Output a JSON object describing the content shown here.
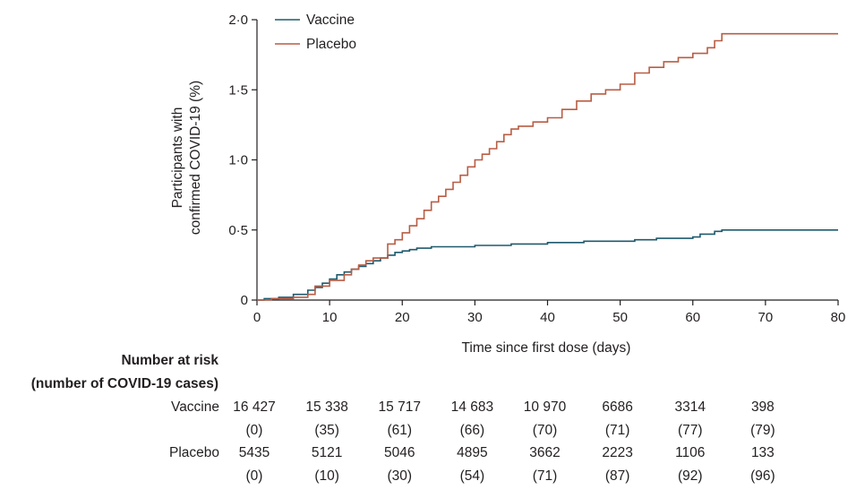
{
  "chart_data": {
    "type": "line",
    "line_style": "step",
    "xlabel": "Time since first dose (days)",
    "ylabel_lines": [
      "Participants with",
      "confirmed COVID-19 (%)"
    ],
    "xlim": [
      0,
      80
    ],
    "ylim": [
      0,
      2.0
    ],
    "x_ticks": [
      "0",
      "10",
      "20",
      "30",
      "40",
      "50",
      "60",
      "70",
      "80"
    ],
    "y_ticks": [
      "0",
      "0·5",
      "1·0",
      "1·5",
      "2·0"
    ],
    "grid": false,
    "legend_position": "top-left",
    "colors": {
      "Vaccine": "#1f5a6e",
      "Placebo": "#b85d44"
    },
    "series": [
      {
        "name": "Vaccine",
        "x": [
          0,
          1,
          3,
          5,
          7,
          8,
          9,
          10,
          11,
          12,
          13,
          14,
          15,
          16,
          17,
          18,
          19,
          20,
          21,
          22,
          24,
          27,
          30,
          35,
          40,
          45,
          50,
          52,
          55,
          58,
          60,
          61,
          63,
          64,
          70,
          80
        ],
        "y": [
          0,
          0.01,
          0.02,
          0.04,
          0.07,
          0.09,
          0.12,
          0.15,
          0.18,
          0.2,
          0.22,
          0.24,
          0.26,
          0.28,
          0.3,
          0.32,
          0.34,
          0.35,
          0.36,
          0.37,
          0.38,
          0.38,
          0.39,
          0.4,
          0.41,
          0.42,
          0.42,
          0.43,
          0.44,
          0.44,
          0.45,
          0.47,
          0.49,
          0.5,
          0.5,
          0.5
        ]
      },
      {
        "name": "Placebo",
        "x": [
          0,
          2,
          5,
          7,
          8,
          10,
          12,
          13,
          14,
          15,
          16,
          17,
          18,
          19,
          20,
          21,
          22,
          23,
          24,
          25,
          26,
          27,
          28,
          29,
          30,
          31,
          32,
          33,
          34,
          35,
          36,
          38,
          40,
          42,
          44,
          46,
          48,
          50,
          52,
          54,
          56,
          58,
          60,
          62,
          63,
          64,
          70,
          80
        ],
        "y": [
          0,
          0.01,
          0.02,
          0.04,
          0.1,
          0.14,
          0.18,
          0.22,
          0.25,
          0.28,
          0.3,
          0.3,
          0.4,
          0.43,
          0.48,
          0.53,
          0.58,
          0.64,
          0.7,
          0.74,
          0.79,
          0.84,
          0.89,
          0.95,
          1.0,
          1.04,
          1.08,
          1.13,
          1.18,
          1.22,
          1.24,
          1.27,
          1.3,
          1.36,
          1.42,
          1.47,
          1.5,
          1.54,
          1.62,
          1.66,
          1.7,
          1.73,
          1.76,
          1.8,
          1.85,
          1.9,
          1.9,
          1.9
        ]
      }
    ]
  },
  "risk_table": {
    "title_line1": "Number at risk",
    "title_line2": "(number of COVID-19 cases)",
    "rows": [
      {
        "label": "Vaccine",
        "counts": [
          "16 427",
          "15 338",
          "15 717",
          "14 683",
          "10 970",
          "6686",
          "3314",
          "398"
        ],
        "cases": [
          "(0)",
          "(35)",
          "(61)",
          "(66)",
          "(70)",
          "(71)",
          "(77)",
          "(79)"
        ]
      },
      {
        "label": "Placebo",
        "counts": [
          "5435",
          "5121",
          "5046",
          "4895",
          "3662",
          "2223",
          "1106",
          "133"
        ],
        "cases": [
          "(0)",
          "(10)",
          "(30)",
          "(54)",
          "(71)",
          "(87)",
          "(92)",
          "(96)"
        ]
      }
    ]
  }
}
